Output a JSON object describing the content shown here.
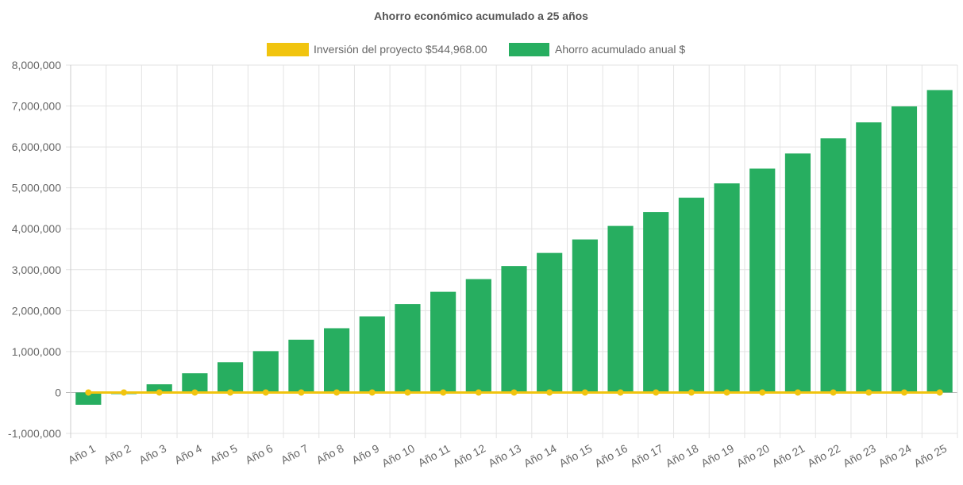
{
  "chart_data": {
    "type": "bar",
    "title": "Ahorro económico acumulado a 25 años",
    "categories": [
      "Año 1",
      "Año 2",
      "Año 3",
      "Año 4",
      "Año 5",
      "Año 6",
      "Año 7",
      "Año 8",
      "Año 9",
      "Año 10",
      "Año 11",
      "Año 12",
      "Año 13",
      "Año 14",
      "Año 15",
      "Año 16",
      "Año 17",
      "Año 18",
      "Año 19",
      "Año 20",
      "Año 21",
      "Año 22",
      "Año 23",
      "Año 24",
      "Año 25"
    ],
    "series": [
      {
        "name": "Inversión del proyecto $544,968.00",
        "type": "line",
        "color": "#f1c40f",
        "values": [
          0,
          0,
          0,
          0,
          0,
          0,
          0,
          0,
          0,
          0,
          0,
          0,
          0,
          0,
          0,
          0,
          0,
          0,
          0,
          0,
          0,
          0,
          0,
          0,
          0
        ]
      },
      {
        "name": "Ahorro acumulado anual $",
        "type": "bar",
        "color": "#27ae60",
        "values": [
          -300000,
          -40000,
          200000,
          470000,
          740000,
          1010000,
          1290000,
          1570000,
          1860000,
          2160000,
          2460000,
          2770000,
          3090000,
          3410000,
          3740000,
          4070000,
          4410000,
          4760000,
          5110000,
          5470000,
          5840000,
          6210000,
          6600000,
          6990000,
          7390000
        ]
      }
    ],
    "yticks": [
      "8,000,000",
      "7,000,000",
      "6,000,000",
      "5,000,000",
      "4,000,000",
      "3,000,000",
      "2,000,000",
      "1,000,000",
      "0",
      "-1,000,000"
    ],
    "ylim": [
      -1000000,
      8000000
    ],
    "grid": true,
    "legend_position": "top"
  }
}
